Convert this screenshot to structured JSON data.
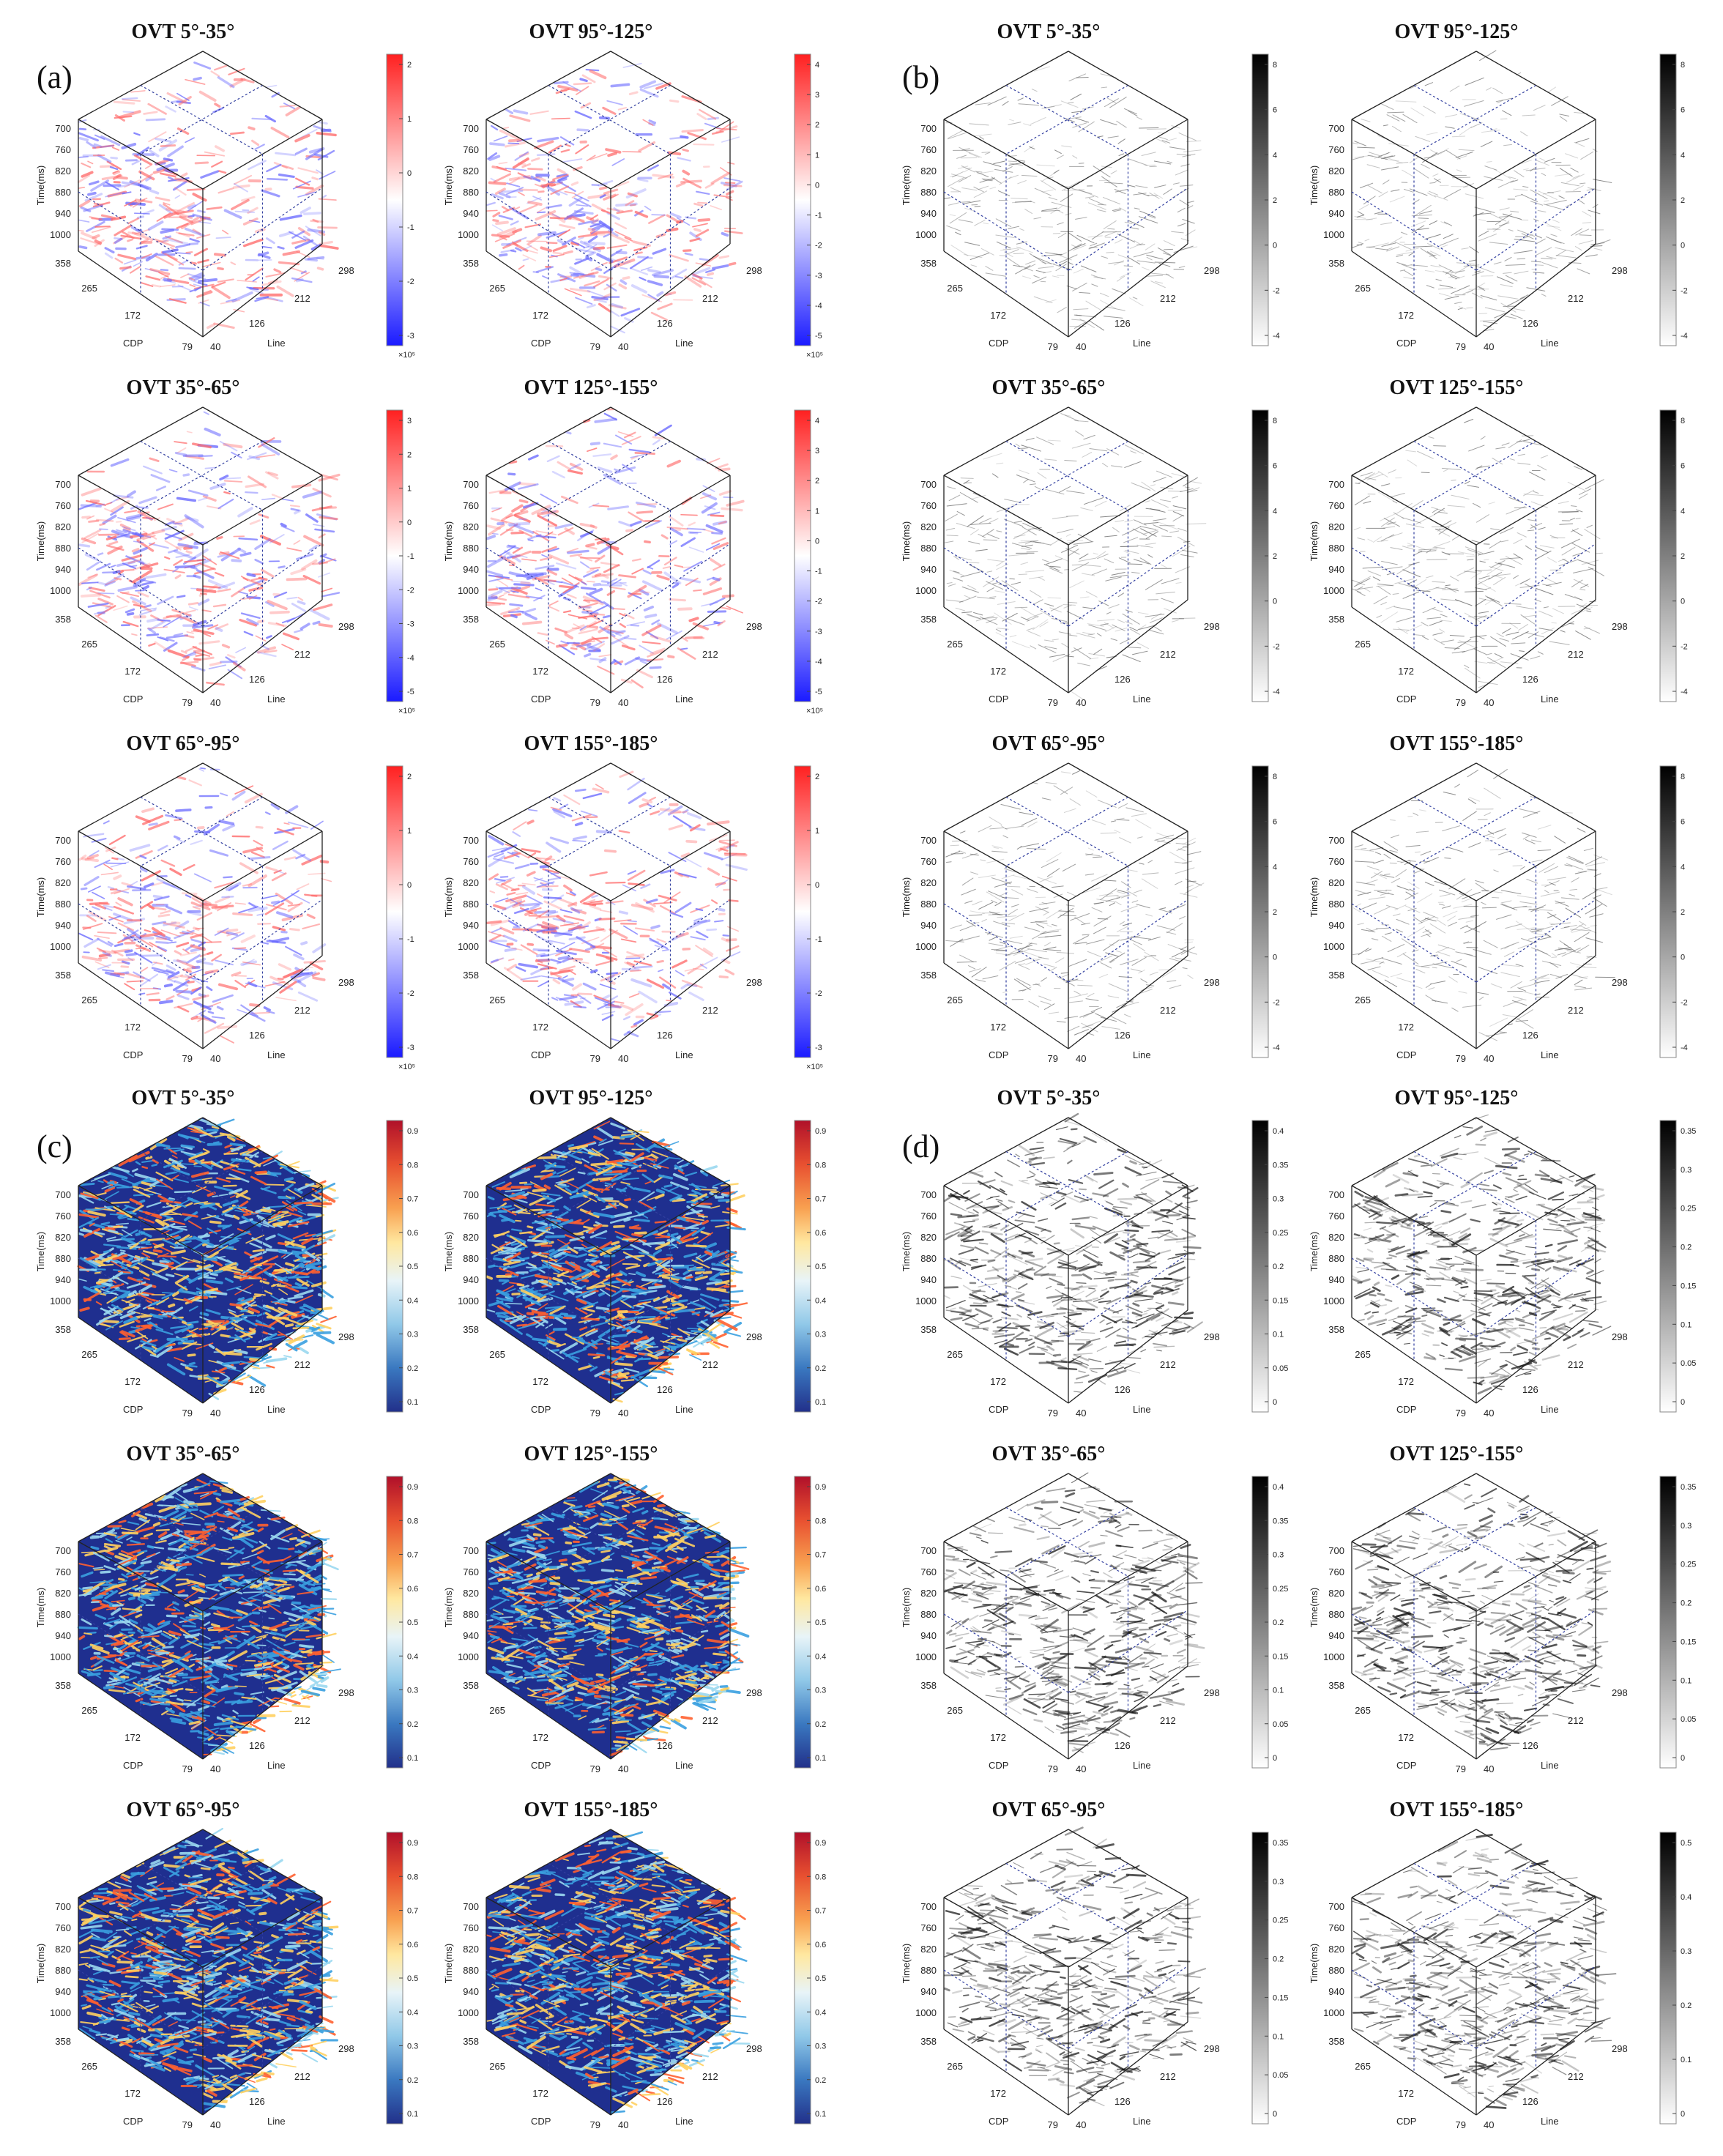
{
  "figure": {
    "panel_labels": [
      "(a)",
      "(b)",
      "(c)",
      "(d)"
    ],
    "groups": [
      {
        "id": "a",
        "type": "seismic",
        "titles": [
          "OVT 5°-35°",
          "OVT 95°-125°",
          "OVT 35°-65°",
          "OVT 125°-155°",
          "OVT 65°-95°",
          "OVT 155°-185°"
        ],
        "colorbars": [
          {
            "ticks": [
              "2",
              "1",
              "0",
              "-1",
              "-2",
              "-3"
            ],
            "exp": "×10⁵"
          },
          {
            "ticks": [
              "4",
              "3",
              "2",
              "1",
              "0",
              "-1",
              "-2",
              "-3",
              "-4",
              "-5"
            ],
            "exp": "×10⁵"
          },
          {
            "ticks": [
              "3",
              "2",
              "1",
              "0",
              "-1",
              "-2",
              "-3",
              "-4",
              "-5"
            ],
            "exp": "×10⁵"
          },
          {
            "ticks": [
              "4",
              "3",
              "2",
              "1",
              "0",
              "-1",
              "-2",
              "-3",
              "-4",
              "-5"
            ],
            "exp": "×10⁵"
          },
          {
            "ticks": [
              "2",
              "1",
              "0",
              "-1",
              "-2",
              "-3"
            ],
            "exp": "×10⁵"
          },
          {
            "ticks": [
              "2",
              "1",
              "0",
              "-1",
              "-2",
              "-3"
            ],
            "exp": "×10⁵"
          }
        ]
      },
      {
        "id": "b",
        "type": "gray",
        "titles": [
          "OVT 5°-35°",
          "OVT 95°-125°",
          "OVT 35°-65°",
          "OVT 125°-155°",
          "OVT 65°-95°",
          "OVT 155°-185°"
        ],
        "colorbars": [
          {
            "ticks": [
              "8",
              "6",
              "4",
              "2",
              "0",
              "-2",
              "-4"
            ],
            "exp": ""
          },
          {
            "ticks": [
              "8",
              "6",
              "4",
              "2",
              "0",
              "-2",
              "-4"
            ],
            "exp": ""
          },
          {
            "ticks": [
              "8",
              "6",
              "4",
              "2",
              "0",
              "-2",
              "-4"
            ],
            "exp": ""
          },
          {
            "ticks": [
              "8",
              "6",
              "4",
              "2",
              "0",
              "-2",
              "-4"
            ],
            "exp": ""
          },
          {
            "ticks": [
              "8",
              "6",
              "4",
              "2",
              "0",
              "-2",
              "-4"
            ],
            "exp": ""
          },
          {
            "ticks": [
              "8",
              "6",
              "4",
              "2",
              "0",
              "-2",
              "-4"
            ],
            "exp": ""
          }
        ]
      },
      {
        "id": "c",
        "type": "jet",
        "titles": [
          "OVT 5°-35°",
          "OVT 95°-125°",
          "OVT 35°-65°",
          "OVT 125°-155°",
          "OVT 65°-95°",
          "OVT 155°-185°"
        ],
        "colorbars": [
          {
            "ticks": [
              "0.9",
              "0.8",
              "0.7",
              "0.6",
              "0.5",
              "0.4",
              "0.3",
              "0.2",
              "0.1"
            ],
            "exp": ""
          },
          {
            "ticks": [
              "0.9",
              "0.8",
              "0.7",
              "0.6",
              "0.5",
              "0.4",
              "0.3",
              "0.2",
              "0.1"
            ],
            "exp": ""
          },
          {
            "ticks": [
              "0.9",
              "0.8",
              "0.7",
              "0.6",
              "0.5",
              "0.4",
              "0.3",
              "0.2",
              "0.1"
            ],
            "exp": ""
          },
          {
            "ticks": [
              "0.9",
              "0.8",
              "0.7",
              "0.6",
              "0.5",
              "0.4",
              "0.3",
              "0.2",
              "0.1"
            ],
            "exp": ""
          },
          {
            "ticks": [
              "0.9",
              "0.8",
              "0.7",
              "0.6",
              "0.5",
              "0.4",
              "0.3",
              "0.2",
              "0.1"
            ],
            "exp": ""
          },
          {
            "ticks": [
              "0.9",
              "0.8",
              "0.7",
              "0.6",
              "0.5",
              "0.4",
              "0.3",
              "0.2",
              "0.1"
            ],
            "exp": ""
          }
        ]
      },
      {
        "id": "d",
        "type": "fault",
        "titles": [
          "OVT 5°-35°",
          "OVT 95°-125°",
          "OVT 35°-65°",
          "OVT 125°-155°",
          "OVT 65°-95°",
          "OVT 155°-185°"
        ],
        "colorbars": [
          {
            "ticks": [
              "0.4",
              "0.35",
              "0.3",
              "0.25",
              "0.2",
              "0.15",
              "0.1",
              "0.05",
              "0"
            ],
            "exp": ""
          },
          {
            "ticks": [
              "0.35",
              "0.3",
              "0.25",
              "0.2",
              "0.15",
              "0.1",
              "0.05",
              "0"
            ],
            "exp": ""
          },
          {
            "ticks": [
              "0.4",
              "0.35",
              "0.3",
              "0.25",
              "0.2",
              "0.15",
              "0.1",
              "0.05",
              "0"
            ],
            "exp": ""
          },
          {
            "ticks": [
              "0.35",
              "0.3",
              "0.25",
              "0.2",
              "0.15",
              "0.1",
              "0.05",
              "0"
            ],
            "exp": ""
          },
          {
            "ticks": [
              "0.35",
              "0.3",
              "0.25",
              "0.2",
              "0.15",
              "0.1",
              "0.05",
              "0"
            ],
            "exp": ""
          },
          {
            "ticks": [
              "0.5",
              "0.4",
              "0.3",
              "0.2",
              "0.1",
              "0"
            ],
            "exp": ""
          }
        ]
      }
    ],
    "axes": {
      "z_label": "Time(ms)",
      "z_ticks": [
        "700",
        "760",
        "820",
        "880",
        "940",
        "1000"
      ],
      "cdp_label": "CDP",
      "cdp_ticks": [
        "358",
        "265",
        "172",
        "79"
      ],
      "line_label": "Line",
      "line_ticks": [
        "40",
        "126",
        "212",
        "298"
      ]
    },
    "colors": {
      "seismic_pos": "#ff2a2a",
      "seismic_neg": "#2a2aff",
      "jet_background": "#1f2f8f",
      "edge": "#222222",
      "slice_dash": "#3340a0"
    }
  }
}
